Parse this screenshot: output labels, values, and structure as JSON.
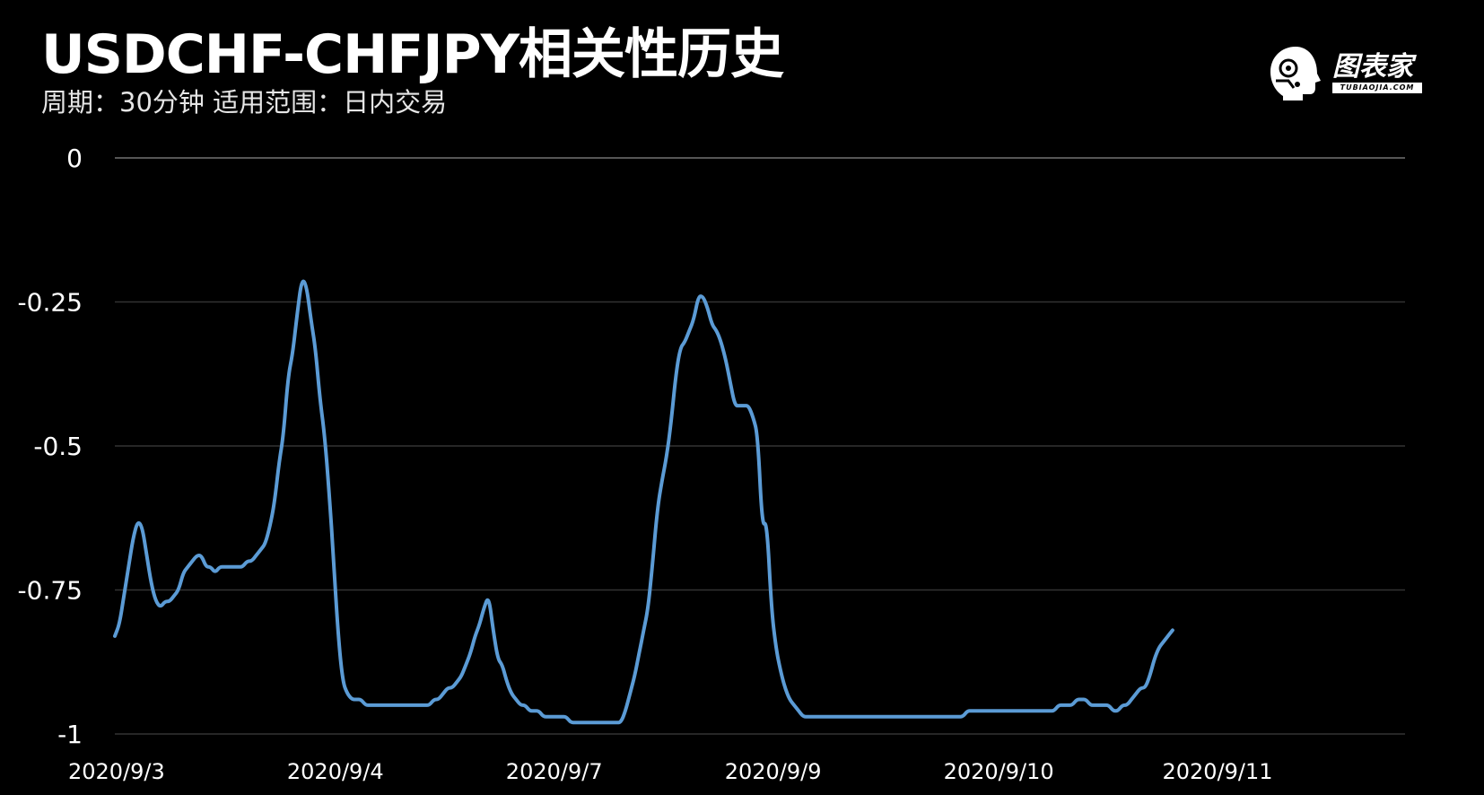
{
  "header": {
    "title": "USDCHF-CHFJPY相关性历史",
    "subtitle": "周期：30分钟 适用范围：日内交易"
  },
  "logo": {
    "name": "图表家",
    "domain": "TUBIAOJIA.COM",
    "icon": "head-logo-icon"
  },
  "colors": {
    "background": "#000000",
    "line": "#5b9bd5",
    "grid": "#333333",
    "text": "#ffffff"
  },
  "chart_data": {
    "type": "line",
    "title": "USDCHF-CHFJPY相关性历史",
    "xlabel": "",
    "ylabel": "",
    "ylim": [
      -1,
      0
    ],
    "yticks": [
      0,
      -0.25,
      -0.5,
      -0.75,
      -1
    ],
    "ytick_labels": [
      "0",
      "-0.25",
      "-0.5",
      "-0.75",
      "-1"
    ],
    "xticks": [
      {
        "label": "2020/9/3",
        "index": 0
      },
      {
        "label": "2020/9/4",
        "index": 48
      },
      {
        "label": "2020/9/7",
        "index": 96
      },
      {
        "label": "2020/9/9",
        "index": 144
      },
      {
        "label": "2020/9/10",
        "index": 192
      },
      {
        "label": "2020/9/11",
        "index": 240
      }
    ],
    "grid": true,
    "legend": "none",
    "series": [
      {
        "values": [
          -0.83,
          -0.81,
          -0.76,
          -0.71,
          -0.66,
          -0.63,
          -0.64,
          -0.69,
          -0.74,
          -0.77,
          -0.78,
          -0.77,
          -0.77,
          -0.76,
          -0.75,
          -0.72,
          -0.71,
          -0.7,
          -0.69,
          -0.69,
          -0.71,
          -0.71,
          -0.72,
          -0.71,
          -0.71,
          -0.71,
          -0.71,
          -0.71,
          -0.71,
          -0.7,
          -0.7,
          -0.69,
          -0.68,
          -0.67,
          -0.64,
          -0.6,
          -0.53,
          -0.48,
          -0.38,
          -0.34,
          -0.27,
          -0.21,
          -0.22,
          -0.28,
          -0.33,
          -0.42,
          -0.48,
          -0.58,
          -0.7,
          -0.83,
          -0.91,
          -0.93,
          -0.94,
          -0.94,
          -0.94,
          -0.95,
          -0.95,
          -0.95,
          -0.95,
          -0.95,
          -0.95,
          -0.95,
          -0.95,
          -0.95,
          -0.95,
          -0.95,
          -0.95,
          -0.95,
          -0.95,
          -0.95,
          -0.94,
          -0.94,
          -0.93,
          -0.92,
          -0.92,
          -0.91,
          -0.9,
          -0.88,
          -0.86,
          -0.83,
          -0.81,
          -0.78,
          -0.76,
          -0.82,
          -0.87,
          -0.88,
          -0.91,
          -0.93,
          -0.94,
          -0.95,
          -0.95,
          -0.96,
          -0.96,
          -0.96,
          -0.97,
          -0.97,
          -0.97,
          -0.97,
          -0.97,
          -0.97,
          -0.98,
          -0.98,
          -0.98,
          -0.98,
          -0.98,
          -0.98,
          -0.98,
          -0.98,
          -0.98,
          -0.98,
          -0.98,
          -0.98,
          -0.96,
          -0.93,
          -0.9,
          -0.86,
          -0.82,
          -0.78,
          -0.7,
          -0.61,
          -0.56,
          -0.52,
          -0.46,
          -0.38,
          -0.33,
          -0.32,
          -0.3,
          -0.28,
          -0.24,
          -0.24,
          -0.26,
          -0.29,
          -0.3,
          -0.32,
          -0.35,
          -0.39,
          -0.43,
          -0.43,
          -0.43,
          -0.43,
          -0.45,
          -0.48,
          -0.64,
          -0.63,
          -0.78,
          -0.85,
          -0.89,
          -0.92,
          -0.94,
          -0.95,
          -0.96,
          -0.97,
          -0.97,
          -0.97,
          -0.97,
          -0.97,
          -0.97,
          -0.97,
          -0.97,
          -0.97,
          -0.97,
          -0.97,
          -0.97,
          -0.97,
          -0.97,
          -0.97,
          -0.97,
          -0.97,
          -0.97,
          -0.97,
          -0.97,
          -0.97,
          -0.97,
          -0.97,
          -0.97,
          -0.97,
          -0.97,
          -0.97,
          -0.97,
          -0.97,
          -0.97,
          -0.97,
          -0.97,
          -0.97,
          -0.97,
          -0.97,
          -0.97,
          -0.96,
          -0.96,
          -0.96,
          -0.96,
          -0.96,
          -0.96,
          -0.96,
          -0.96,
          -0.96,
          -0.96,
          -0.96,
          -0.96,
          -0.96,
          -0.96,
          -0.96,
          -0.96,
          -0.96,
          -0.96,
          -0.96,
          -0.96,
          -0.95,
          -0.95,
          -0.95,
          -0.95,
          -0.94,
          -0.94,
          -0.94,
          -0.95,
          -0.95,
          -0.95,
          -0.95,
          -0.95,
          -0.96,
          -0.96,
          -0.95,
          -0.95,
          -0.94,
          -0.93,
          -0.92,
          -0.92,
          -0.9,
          -0.87,
          -0.85,
          -0.84,
          -0.83,
          -0.82
        ]
      }
    ]
  }
}
